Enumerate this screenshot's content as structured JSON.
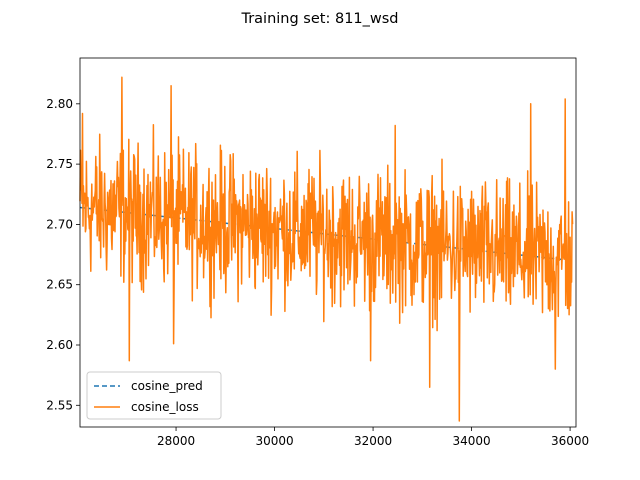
{
  "chart_data": {
    "type": "line",
    "title": "Training set: 811_wsd",
    "xlabel": "",
    "ylabel": "",
    "xlim": [
      26050,
      36120
    ],
    "ylim": [
      2.532,
      2.838
    ],
    "xticks": [
      28000,
      30000,
      32000,
      34000,
      36000
    ],
    "xtick_labels": [
      "28000",
      "30000",
      "32000",
      "34000",
      "36000"
    ],
    "yticks": [
      2.55,
      2.6,
      2.65,
      2.7,
      2.75,
      2.8
    ],
    "ytick_labels": [
      "2.55",
      "2.60",
      "2.65",
      "2.70",
      "2.75",
      "2.80"
    ],
    "grid": false,
    "legend_position": "lower-left",
    "series": [
      {
        "name": "cosine_pred",
        "color": "#1f77b4",
        "style": "dashed",
        "x": [
          26050,
          36050
        ],
        "y": [
          2.714,
          2.67
        ]
      },
      {
        "name": "cosine_loss",
        "color": "#ff7f0e",
        "style": "solid",
        "x_start": 26050,
        "x_step": 10,
        "trend": {
          "x": [
            26050,
            36050
          ],
          "y": [
            2.714,
            2.67
          ]
        },
        "amplitude": 0.028,
        "peaks": [
          {
            "x": 26100,
            "y": 2.792
          },
          {
            "x": 26900,
            "y": 2.822
          },
          {
            "x": 27050,
            "y": 2.587
          },
          {
            "x": 27900,
            "y": 2.815
          },
          {
            "x": 27950,
            "y": 2.601
          },
          {
            "x": 31950,
            "y": 2.587
          },
          {
            "x": 32450,
            "y": 2.782
          },
          {
            "x": 33150,
            "y": 2.565
          },
          {
            "x": 33750,
            "y": 2.537
          },
          {
            "x": 35200,
            "y": 2.8
          },
          {
            "x": 35900,
            "y": 2.804
          },
          {
            "x": 35700,
            "y": 2.58
          }
        ]
      }
    ]
  }
}
